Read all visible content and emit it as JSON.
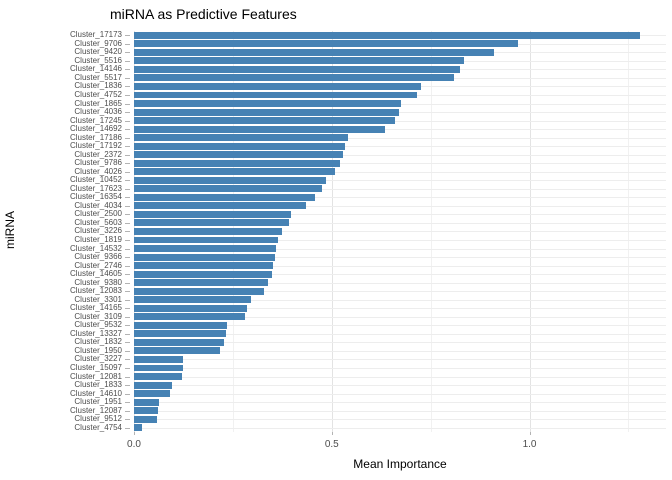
{
  "chart_data": {
    "type": "bar",
    "orientation": "horizontal",
    "title": "miRNA as Predictive Features",
    "xlabel": "Mean Importance",
    "ylabel": "miRNA",
    "xlim": [
      0,
      1.345
    ],
    "x_major_ticks": [
      0.0,
      0.5,
      1.0
    ],
    "x_tick_labels": [
      "0.0",
      "0.5",
      "1.0"
    ],
    "x_minor_ticks": [
      0.25,
      0.75,
      1.25
    ],
    "grid": true,
    "legend": false,
    "bar_color": "#4682B4",
    "categories": [
      "Cluster_17173",
      "Cluster_9706",
      "Cluster_9420",
      "Cluster_5516",
      "Cluster_14146",
      "Cluster_5517",
      "Cluster_1836",
      "Cluster_4752",
      "Cluster_1865",
      "Cluster_4036",
      "Cluster_17245",
      "Cluster_14692",
      "Cluster_17186",
      "Cluster_17192",
      "Cluster_2372",
      "Cluster_9786",
      "Cluster_4026",
      "Cluster_10452",
      "Cluster_17623",
      "Cluster_16354",
      "Cluster_4034",
      "Cluster_2500",
      "Cluster_5603",
      "Cluster_3226",
      "Cluster_1819",
      "Cluster_14532",
      "Cluster_9366",
      "Cluster_2746",
      "Cluster_14605",
      "Cluster_9380",
      "Cluster_12083",
      "Cluster_3301",
      "Cluster_14165",
      "Cluster_3109",
      "Cluster_9532",
      "Cluster_13327",
      "Cluster_1832",
      "Cluster_1950",
      "Cluster_3227",
      "Cluster_15097",
      "Cluster_12081",
      "Cluster_1833",
      "Cluster_14610",
      "Cluster_1951",
      "Cluster_12087",
      "Cluster_9512",
      "Cluster_4754"
    ],
    "values": [
      1.28,
      0.97,
      0.91,
      0.835,
      0.825,
      0.81,
      0.725,
      0.715,
      0.675,
      0.67,
      0.66,
      0.635,
      0.54,
      0.533,
      0.528,
      0.522,
      0.507,
      0.486,
      0.475,
      0.457,
      0.436,
      0.397,
      0.392,
      0.375,
      0.365,
      0.36,
      0.357,
      0.351,
      0.35,
      0.34,
      0.328,
      0.296,
      0.286,
      0.281,
      0.236,
      0.232,
      0.227,
      0.217,
      0.125,
      0.123,
      0.122,
      0.097,
      0.092,
      0.062,
      0.061,
      0.059,
      0.02
    ]
  }
}
